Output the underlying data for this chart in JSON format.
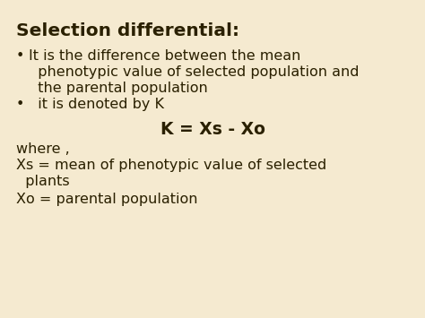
{
  "bg_color": "#f5ead0",
  "title": "Selection differential:",
  "title_fontsize": 14.5,
  "bullet1_line1": "It is the difference between the mean",
  "bullet1_line2": "  phenotypic value of selected population and",
  "bullet1_line3": "  the parental population",
  "bullet2": "  it is denoted by K",
  "formula": "K = Xs - Xo",
  "where": "where ,",
  "xs_def_line1": "Xs = mean of phenotypic value of selected",
  "xs_def_line2": "  plants",
  "xo_def": "Xo = parental population",
  "text_color": "#2a2000",
  "body_fontsize": 11.5,
  "formula_fontsize": 13.5
}
